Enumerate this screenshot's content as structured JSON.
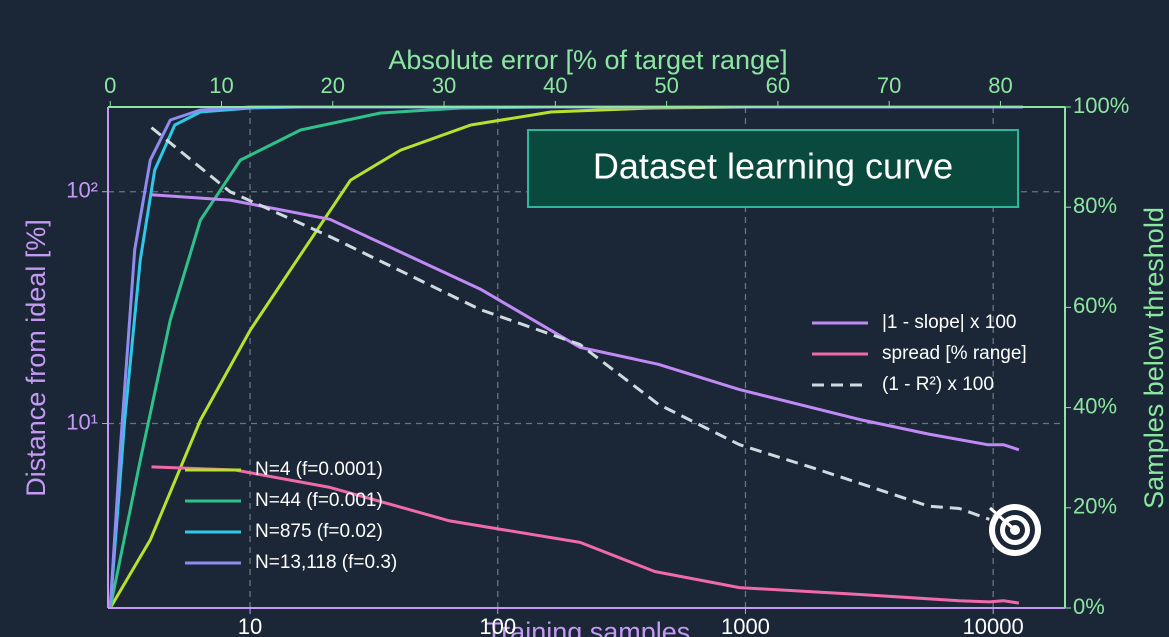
{
  "chart_data": {
    "type": "line",
    "title": "Dataset learning curve",
    "xlabel": "Training samples",
    "ylabel": "Distance from ideal [%]",
    "x2label": "Absolute error [% of target range]",
    "y2label": "Samples below threshold",
    "xscale": "log",
    "yscale": "log",
    "xlim": [
      2.67,
      19500
    ],
    "ylim": [
      1.6,
      232
    ],
    "xticks": [
      10,
      100,
      1000,
      10000
    ],
    "yticks": [
      {
        "value": 100,
        "label": "10²"
      },
      {
        "value": 10,
        "label": "10¹"
      }
    ],
    "x2lim": [
      -0.2,
      85.8
    ],
    "x2ticks": [
      0,
      10,
      20,
      30,
      40,
      50,
      60,
      70,
      80
    ],
    "y2lim": [
      0,
      100
    ],
    "y2ticks": [
      {
        "value": 0,
        "label": "0%"
      },
      {
        "value": 20,
        "label": "20%"
      },
      {
        "value": 40,
        "label": "40%"
      },
      {
        "value": 60,
        "label": "60%"
      },
      {
        "value": 80,
        "label": "80%"
      },
      {
        "value": 100,
        "label": "100%"
      }
    ],
    "grid": true,
    "series": [
      {
        "name": "N=4 (f=0.0001)",
        "color": "#b5e22d",
        "axis": "y2",
        "x": [
          0,
          3.6,
          8.1,
          12.6,
          17.1,
          21.6,
          26.1,
          32.4,
          39.6,
          48.5,
          57.5,
          82
        ],
        "values": [
          0,
          13.6,
          37.5,
          55.5,
          70.5,
          85.4,
          91.4,
          96.4,
          99,
          99.8,
          100,
          100
        ]
      },
      {
        "name": "N=44 (f=0.001)",
        "color": "#2ec28a",
        "axis": "y2",
        "x": [
          0,
          2.7,
          5.4,
          8.1,
          11.7,
          17.1,
          24.3,
          31.5,
          39.6,
          82
        ],
        "values": [
          0,
          29.5,
          57.5,
          77.4,
          89.4,
          95.4,
          98.8,
          99.8,
          100,
          100
        ]
      },
      {
        "name": "N=875 (f=0.02)",
        "color": "#30c8e8",
        "axis": "y2",
        "x": [
          0,
          1.3,
          2.7,
          4,
          5.8,
          8.1,
          12.6,
          17.1,
          82
        ],
        "values": [
          0,
          37.5,
          69.5,
          87.4,
          96.4,
          99,
          99.8,
          100,
          100
        ]
      },
      {
        "name": "N=13,118 (f=0.3)",
        "color": "#8f8cf0",
        "axis": "y2",
        "x": [
          0,
          0.9,
          2.2,
          3.6,
          5.4,
          8.1,
          12.6,
          82
        ],
        "values": [
          0,
          31.5,
          71.5,
          89.4,
          97.4,
          99.4,
          100,
          100
        ]
      },
      {
        "name": "|1 - slope| x 100",
        "color": "#c08af5",
        "x": [
          4,
          8.3,
          21,
          85,
          215,
          445,
          946,
          2900,
          5500,
          9500,
          11000,
          12700
        ],
        "values": [
          97,
          92,
          76,
          38,
          21.3,
          18,
          14,
          10.4,
          9,
          8.1,
          8.1,
          7.7
        ]
      },
      {
        "name": "spread [% range]",
        "color": "#f06aa8",
        "x": [
          4,
          8.7,
          21,
          64,
          215,
          430,
          946,
          2900,
          7300,
          9650,
          11000,
          12700
        ],
        "values": [
          6.5,
          6.3,
          5.3,
          3.8,
          3.07,
          2.3,
          1.96,
          1.83,
          1.72,
          1.7,
          1.72,
          1.68
        ]
      },
      {
        "name": "(1 - R²) x 100",
        "color": "#d0d8e0",
        "linestyle": "dashed",
        "x": [
          4,
          8.3,
          21,
          85,
          215,
          445,
          946,
          1990,
          5500,
          7300,
          9650
        ],
        "values": [
          189,
          100,
          64,
          31,
          21.9,
          12.1,
          8.1,
          6.3,
          4.4,
          4.3,
          3.86
        ]
      }
    ]
  }
}
